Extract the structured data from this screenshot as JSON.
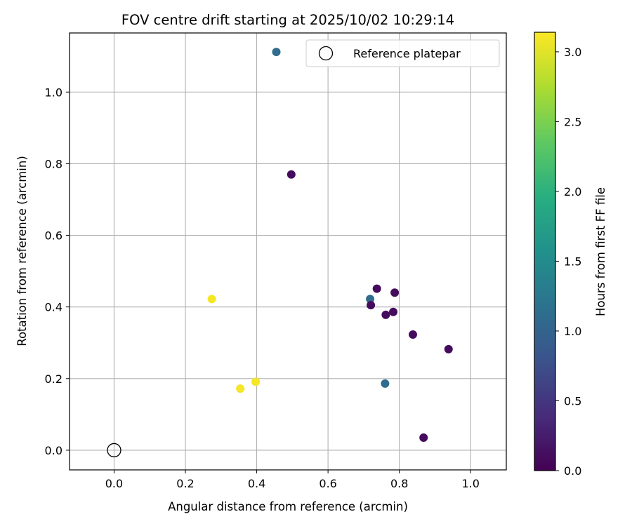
{
  "chart_data": {
    "type": "scatter",
    "title": "FOV centre drift starting at 2025/10/02 10:29:14",
    "xlabel": "Angular distance from reference (arcmin)",
    "ylabel": "Rotation from reference (arcmin)",
    "xlim": [
      -0.125,
      1.1
    ],
    "ylim": [
      -0.055,
      1.165
    ],
    "xticks": [
      0.0,
      0.2,
      0.4,
      0.6,
      0.8,
      1.0
    ],
    "xtick_labels": [
      "0.0",
      "0.2",
      "0.4",
      "0.6",
      "0.8",
      "1.0"
    ],
    "yticks": [
      0.0,
      0.2,
      0.4,
      0.6,
      0.8,
      1.0
    ],
    "ytick_labels": [
      "0.0",
      "0.2",
      "0.4",
      "0.6",
      "0.8",
      "1.0"
    ],
    "grid": true,
    "colorbar": {
      "label": "Hours from first FF file",
      "colormap": "viridis",
      "range": [
        0.0,
        3.14
      ],
      "ticks": [
        0.0,
        0.5,
        1.0,
        1.5,
        2.0,
        2.5,
        3.0
      ],
      "tick_labels": [
        "0.0",
        "0.5",
        "1.0",
        "1.5",
        "2.0",
        "2.5",
        "3.0"
      ]
    },
    "reference": {
      "x": 0.0,
      "y": 0.0,
      "label": "Reference platepar"
    },
    "legend_location": "top-right",
    "points": [
      {
        "x": 0.455,
        "y": 1.112,
        "hours": 1.1
      },
      {
        "x": 0.497,
        "y": 0.77,
        "hours": 0.1
      },
      {
        "x": 0.737,
        "y": 0.451,
        "hours": 0.1
      },
      {
        "x": 0.787,
        "y": 0.44,
        "hours": 0.1
      },
      {
        "x": 0.718,
        "y": 0.422,
        "hours": 1.1
      },
      {
        "x": 0.72,
        "y": 0.405,
        "hours": 0.1
      },
      {
        "x": 0.783,
        "y": 0.386,
        "hours": 0.1
      },
      {
        "x": 0.762,
        "y": 0.378,
        "hours": 0.1
      },
      {
        "x": 0.838,
        "y": 0.323,
        "hours": 0.1
      },
      {
        "x": 0.938,
        "y": 0.282,
        "hours": 0.1
      },
      {
        "x": 0.76,
        "y": 0.186,
        "hours": 1.1
      },
      {
        "x": 0.868,
        "y": 0.035,
        "hours": 0.1
      },
      {
        "x": 0.274,
        "y": 0.422,
        "hours": 3.1
      },
      {
        "x": 0.397,
        "y": 0.191,
        "hours": 3.1
      },
      {
        "x": 0.354,
        "y": 0.172,
        "hours": 3.1
      }
    ]
  }
}
